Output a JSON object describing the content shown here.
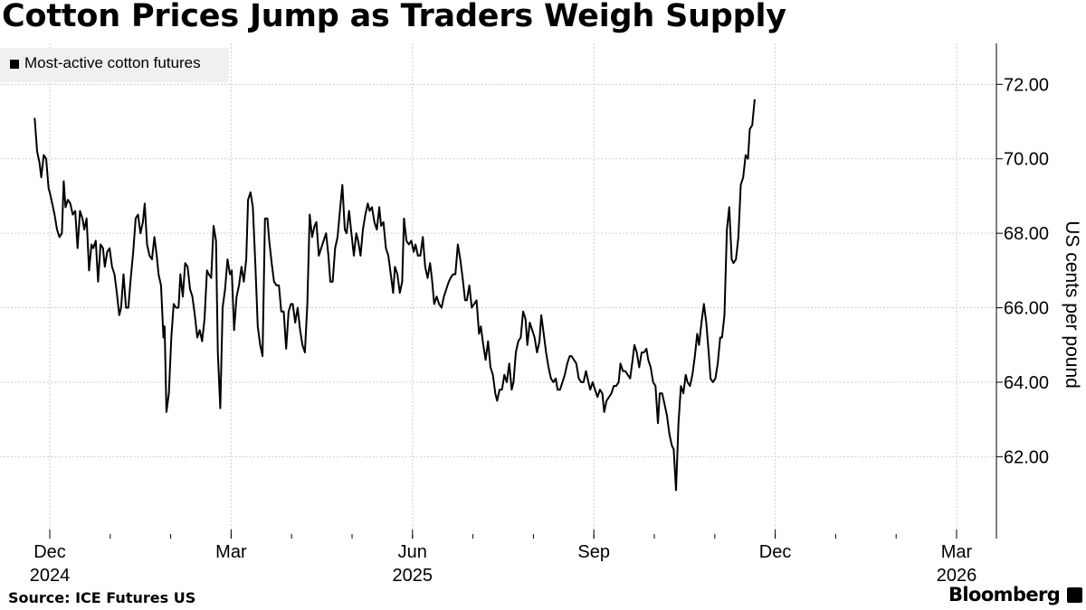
{
  "title": "Cotton Prices Jump as Traders Weigh Supply",
  "legend": {
    "label": "Most-active cotton futures",
    "color": "#000000"
  },
  "source": "Source: ICE Futures US",
  "brand": "Bloomberg",
  "chart_data": {
    "type": "line",
    "title": "Cotton Prices Jump as Traders Weigh Supply",
    "ylabel": "US cents per pound",
    "xlabel": "",
    "ylim": [
      59.8,
      73.1
    ],
    "y_ticks": [
      "62.00",
      "64.00",
      "66.00",
      "68.00",
      "70.00",
      "72.00"
    ],
    "x_ticks": [
      {
        "label": "Dec",
        "year": "2024",
        "month_index": 0
      },
      {
        "label": "Mar",
        "year": "",
        "month_index": 3
      },
      {
        "label": "Jun",
        "year": "2025",
        "month_index": 6
      },
      {
        "label": "Sep",
        "year": "",
        "month_index": 9
      },
      {
        "label": "Dec",
        "year": "",
        "month_index": 12
      },
      {
        "label": "Mar",
        "year": "2026",
        "month_index": 15
      }
    ],
    "x_range_months": [
      -0.25,
      15.8
    ],
    "series": [
      {
        "name": "Most-active cotton futures",
        "points": [
          [
            -0.25,
            71.1
          ],
          [
            -0.21,
            70.2
          ],
          [
            -0.17,
            69.9
          ],
          [
            -0.14,
            69.5
          ],
          [
            -0.1,
            70.1
          ],
          [
            -0.06,
            70.0
          ],
          [
            -0.02,
            69.2
          ],
          [
            0.0,
            69.1
          ],
          [
            0.04,
            68.8
          ],
          [
            0.08,
            68.5
          ],
          [
            0.12,
            68.1
          ],
          [
            0.16,
            67.9
          ],
          [
            0.2,
            68.0
          ],
          [
            0.23,
            69.4
          ],
          [
            0.26,
            68.7
          ],
          [
            0.3,
            68.9
          ],
          [
            0.34,
            68.8
          ],
          [
            0.38,
            68.5
          ],
          [
            0.42,
            68.6
          ],
          [
            0.46,
            67.6
          ],
          [
            0.5,
            68.6
          ],
          [
            0.54,
            68.4
          ],
          [
            0.57,
            68.1
          ],
          [
            0.61,
            68.4
          ],
          [
            0.65,
            67.0
          ],
          [
            0.69,
            67.7
          ],
          [
            0.72,
            67.6
          ],
          [
            0.76,
            67.8
          ],
          [
            0.8,
            66.7
          ],
          [
            0.84,
            67.7
          ],
          [
            0.88,
            67.6
          ],
          [
            0.91,
            67.1
          ],
          [
            0.95,
            67.5
          ],
          [
            0.99,
            67.6
          ],
          [
            1.03,
            67.1
          ],
          [
            1.07,
            66.9
          ],
          [
            1.11,
            66.4
          ],
          [
            1.15,
            65.8
          ],
          [
            1.18,
            66.0
          ],
          [
            1.22,
            66.9
          ],
          [
            1.26,
            66.0
          ],
          [
            1.3,
            66.0
          ],
          [
            1.34,
            66.8
          ],
          [
            1.38,
            67.5
          ],
          [
            1.42,
            68.4
          ],
          [
            1.46,
            68.5
          ],
          [
            1.5,
            68.0
          ],
          [
            1.54,
            68.3
          ],
          [
            1.57,
            68.8
          ],
          [
            1.61,
            67.7
          ],
          [
            1.65,
            67.4
          ],
          [
            1.69,
            67.3
          ],
          [
            1.73,
            67.9
          ],
          [
            1.77,
            67.4
          ],
          [
            1.8,
            66.9
          ],
          [
            1.84,
            66.6
          ],
          [
            1.88,
            65.2
          ],
          [
            1.9,
            65.5
          ],
          [
            1.93,
            63.2
          ],
          [
            1.97,
            63.7
          ],
          [
            2.01,
            65.2
          ],
          [
            2.05,
            66.1
          ],
          [
            2.09,
            66.0
          ],
          [
            2.13,
            66.0
          ],
          [
            2.16,
            66.9
          ],
          [
            2.2,
            66.3
          ],
          [
            2.24,
            67.2
          ],
          [
            2.28,
            67.1
          ],
          [
            2.32,
            66.5
          ],
          [
            2.36,
            66.3
          ],
          [
            2.4,
            65.8
          ],
          [
            2.44,
            65.2
          ],
          [
            2.48,
            65.4
          ],
          [
            2.52,
            65.1
          ],
          [
            2.56,
            65.7
          ],
          [
            2.6,
            67.0
          ],
          [
            2.63,
            66.9
          ],
          [
            2.67,
            66.8
          ],
          [
            2.71,
            68.2
          ],
          [
            2.75,
            67.8
          ],
          [
            2.78,
            64.8
          ],
          [
            2.82,
            63.3
          ],
          [
            2.86,
            66.0
          ],
          [
            2.9,
            66.5
          ],
          [
            2.94,
            67.3
          ],
          [
            2.98,
            66.9
          ],
          [
            3.01,
            67.0
          ],
          [
            3.05,
            65.4
          ],
          [
            3.09,
            66.3
          ],
          [
            3.13,
            66.6
          ],
          [
            3.17,
            67.1
          ],
          [
            3.21,
            66.7
          ],
          [
            3.25,
            67.3
          ],
          [
            3.28,
            68.9
          ],
          [
            3.32,
            69.1
          ],
          [
            3.36,
            68.7
          ],
          [
            3.4,
            67.2
          ],
          [
            3.44,
            65.5
          ],
          [
            3.48,
            65.0
          ],
          [
            3.52,
            64.7
          ],
          [
            3.56,
            68.4
          ],
          [
            3.6,
            68.4
          ],
          [
            3.63,
            67.8
          ],
          [
            3.67,
            67.2
          ],
          [
            3.71,
            66.7
          ],
          [
            3.75,
            66.6
          ],
          [
            3.79,
            66.6
          ],
          [
            3.83,
            65.9
          ],
          [
            3.87,
            65.9
          ],
          [
            3.91,
            64.9
          ],
          [
            3.95,
            65.9
          ],
          [
            3.99,
            66.1
          ],
          [
            4.02,
            66.1
          ],
          [
            4.06,
            65.6
          ],
          [
            4.1,
            66.0
          ],
          [
            4.14,
            65.4
          ],
          [
            4.18,
            65.0
          ],
          [
            4.22,
            64.8
          ],
          [
            4.26,
            66.1
          ],
          [
            4.3,
            68.5
          ],
          [
            4.34,
            67.9
          ],
          [
            4.38,
            68.2
          ],
          [
            4.41,
            68.3
          ],
          [
            4.45,
            67.4
          ],
          [
            4.49,
            67.6
          ],
          [
            4.53,
            67.8
          ],
          [
            4.57,
            68.0
          ],
          [
            4.61,
            67.4
          ],
          [
            4.64,
            66.7
          ],
          [
            4.68,
            66.7
          ],
          [
            4.72,
            67.6
          ],
          [
            4.76,
            67.9
          ],
          [
            4.8,
            68.6
          ],
          [
            4.84,
            69.3
          ],
          [
            4.88,
            68.1
          ],
          [
            4.91,
            68.0
          ],
          [
            4.95,
            68.6
          ],
          [
            4.99,
            68.0
          ],
          [
            5.03,
            67.4
          ],
          [
            5.07,
            68.0
          ],
          [
            5.1,
            67.8
          ],
          [
            5.14,
            67.4
          ],
          [
            5.18,
            68.1
          ],
          [
            5.22,
            68.5
          ],
          [
            5.26,
            68.8
          ],
          [
            5.29,
            68.6
          ],
          [
            5.33,
            68.7
          ],
          [
            5.37,
            68.3
          ],
          [
            5.41,
            68.1
          ],
          [
            5.45,
            68.7
          ],
          [
            5.48,
            68.2
          ],
          [
            5.52,
            68.3
          ],
          [
            5.56,
            67.6
          ],
          [
            5.6,
            67.4
          ],
          [
            5.64,
            66.9
          ],
          [
            5.68,
            66.4
          ],
          [
            5.71,
            67.1
          ],
          [
            5.75,
            66.9
          ],
          [
            5.79,
            66.4
          ],
          [
            5.83,
            66.7
          ],
          [
            5.86,
            68.4
          ],
          [
            5.9,
            67.8
          ],
          [
            5.94,
            67.7
          ],
          [
            5.98,
            67.8
          ],
          [
            6.02,
            67.5
          ],
          [
            6.05,
            67.7
          ],
          [
            6.09,
            67.4
          ],
          [
            6.13,
            67.4
          ],
          [
            6.17,
            67.9
          ],
          [
            6.21,
            67.1
          ],
          [
            6.25,
            66.8
          ],
          [
            6.29,
            67.2
          ],
          [
            6.32,
            66.8
          ],
          [
            6.36,
            66.1
          ],
          [
            6.4,
            66.3
          ],
          [
            6.44,
            66.1
          ],
          [
            6.48,
            66.0
          ],
          [
            6.52,
            66.3
          ],
          [
            6.56,
            66.5
          ],
          [
            6.6,
            66.7
          ],
          [
            6.63,
            66.8
          ],
          [
            6.67,
            66.9
          ],
          [
            6.71,
            66.9
          ],
          [
            6.75,
            67.7
          ],
          [
            6.79,
            67.3
          ],
          [
            6.83,
            66.8
          ],
          [
            6.87,
            66.2
          ],
          [
            6.9,
            66.2
          ],
          [
            6.94,
            66.6
          ],
          [
            6.98,
            66.0
          ],
          [
            7.02,
            66.1
          ],
          [
            7.06,
            66.2
          ],
          [
            7.1,
            65.3
          ],
          [
            7.13,
            65.5
          ],
          [
            7.17,
            65.0
          ],
          [
            7.21,
            64.6
          ],
          [
            7.25,
            65.1
          ],
          [
            7.29,
            64.4
          ],
          [
            7.33,
            64.2
          ],
          [
            7.37,
            63.7
          ],
          [
            7.4,
            63.5
          ],
          [
            7.44,
            63.8
          ],
          [
            7.48,
            63.8
          ],
          [
            7.52,
            64.2
          ],
          [
            7.56,
            64.0
          ],
          [
            7.6,
            64.5
          ],
          [
            7.64,
            63.8
          ],
          [
            7.67,
            64.0
          ],
          [
            7.71,
            64.8
          ],
          [
            7.75,
            65.1
          ],
          [
            7.79,
            65.2
          ],
          [
            7.83,
            65.9
          ],
          [
            7.87,
            65.7
          ],
          [
            7.9,
            65.0
          ],
          [
            7.94,
            65.6
          ],
          [
            7.98,
            65.4
          ],
          [
            8.02,
            65.2
          ],
          [
            8.06,
            64.8
          ],
          [
            8.1,
            65.1
          ],
          [
            8.13,
            65.8
          ],
          [
            8.17,
            65.3
          ],
          [
            8.21,
            64.8
          ],
          [
            8.25,
            64.4
          ],
          [
            8.29,
            64.1
          ],
          [
            8.33,
            64.0
          ],
          [
            8.37,
            64.1
          ],
          [
            8.4,
            63.8
          ],
          [
            8.44,
            63.8
          ],
          [
            8.48,
            64.0
          ],
          [
            8.52,
            64.2
          ],
          [
            8.56,
            64.5
          ],
          [
            8.6,
            64.7
          ],
          [
            8.63,
            64.7
          ],
          [
            8.67,
            64.6
          ],
          [
            8.71,
            64.5
          ],
          [
            8.75,
            64.1
          ],
          [
            8.79,
            64.0
          ],
          [
            8.83,
            64.0
          ],
          [
            8.87,
            64.3
          ],
          [
            8.91,
            64.0
          ],
          [
            8.94,
            63.8
          ],
          [
            8.98,
            64.0
          ],
          [
            9.02,
            63.8
          ],
          [
            9.06,
            63.6
          ],
          [
            9.1,
            63.8
          ],
          [
            9.14,
            63.7
          ],
          [
            9.17,
            63.2
          ],
          [
            9.21,
            63.5
          ],
          [
            9.25,
            63.6
          ],
          [
            9.29,
            63.7
          ],
          [
            9.33,
            63.9
          ],
          [
            9.37,
            63.9
          ],
          [
            9.41,
            64.0
          ],
          [
            9.44,
            64.5
          ],
          [
            9.48,
            64.3
          ],
          [
            9.52,
            64.3
          ],
          [
            9.56,
            64.2
          ],
          [
            9.6,
            64.1
          ],
          [
            9.64,
            64.6
          ],
          [
            9.67,
            65.0
          ],
          [
            9.71,
            64.8
          ],
          [
            9.75,
            64.4
          ],
          [
            9.79,
            64.8
          ],
          [
            9.83,
            64.8
          ],
          [
            9.87,
            64.9
          ],
          [
            9.9,
            64.6
          ],
          [
            9.94,
            64.4
          ],
          [
            9.98,
            64.0
          ],
          [
            10.02,
            63.9
          ],
          [
            10.06,
            62.9
          ],
          [
            10.09,
            63.7
          ],
          [
            10.13,
            63.7
          ],
          [
            10.17,
            63.4
          ],
          [
            10.21,
            63.1
          ],
          [
            10.25,
            62.6
          ],
          [
            10.29,
            62.3
          ],
          [
            10.32,
            62.2
          ],
          [
            10.36,
            61.1
          ],
          [
            10.4,
            62.9
          ],
          [
            10.44,
            63.9
          ],
          [
            10.48,
            63.7
          ],
          [
            10.52,
            64.2
          ],
          [
            10.55,
            64.0
          ],
          [
            10.59,
            63.9
          ],
          [
            10.63,
            64.2
          ],
          [
            10.67,
            64.7
          ],
          [
            10.71,
            65.3
          ],
          [
            10.74,
            65.0
          ],
          [
            10.78,
            65.6
          ],
          [
            10.82,
            66.1
          ],
          [
            10.86,
            65.6
          ],
          [
            10.9,
            64.8
          ],
          [
            10.93,
            64.1
          ],
          [
            10.97,
            64.0
          ],
          [
            11.01,
            64.1
          ],
          [
            11.05,
            64.5
          ],
          [
            11.09,
            65.2
          ],
          [
            11.12,
            65.2
          ],
          [
            11.16,
            65.8
          ],
          [
            11.2,
            68.1
          ],
          [
            11.24,
            68.7
          ],
          [
            11.28,
            67.3
          ],
          [
            11.31,
            67.2
          ],
          [
            11.35,
            67.3
          ],
          [
            11.39,
            67.9
          ],
          [
            11.43,
            69.3
          ],
          [
            11.47,
            69.5
          ],
          [
            11.51,
            70.1
          ],
          [
            11.55,
            70.0
          ],
          [
            11.58,
            70.8
          ],
          [
            11.62,
            70.9
          ],
          [
            11.66,
            71.6
          ]
        ]
      }
    ]
  }
}
